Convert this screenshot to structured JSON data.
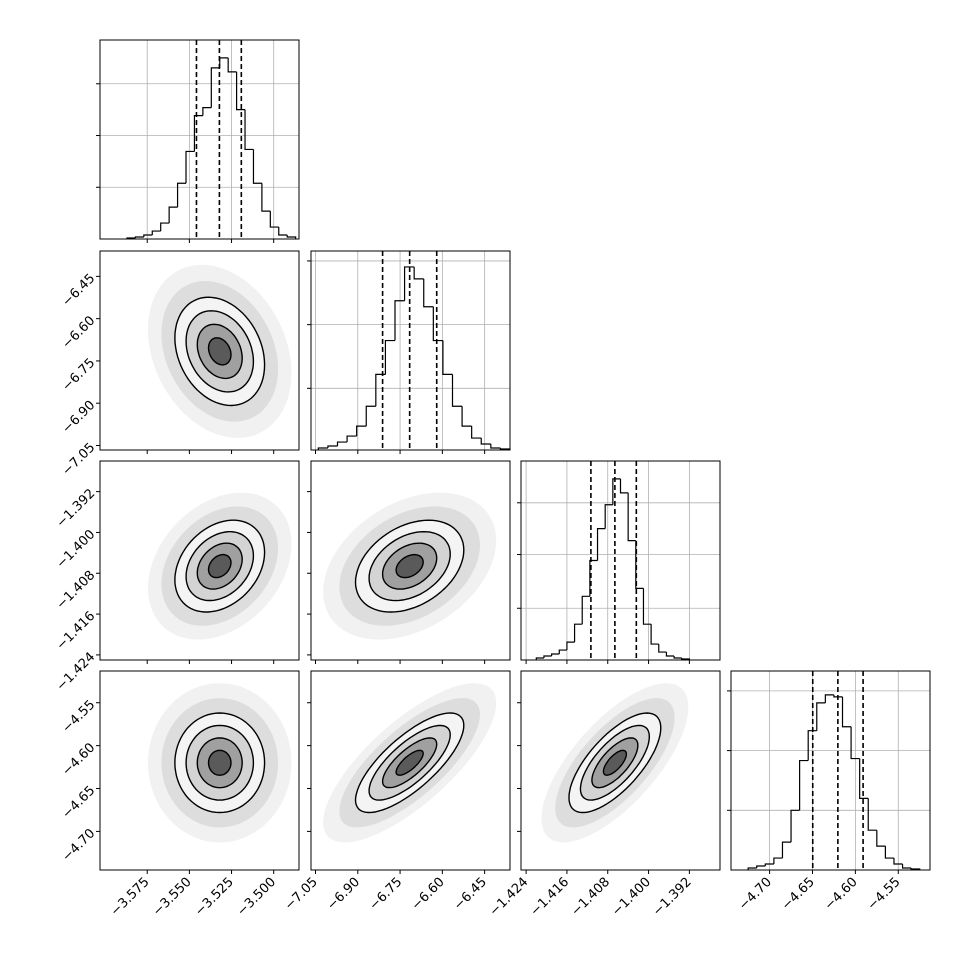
{
  "chart_data": {
    "type": "corner",
    "levels": [
      0.5,
      1,
      1.5,
      2
    ],
    "parameters": [
      {
        "lim": [
          -3.603,
          -3.485
        ],
        "ticks": [
          {
            "value": -3.575,
            "label": "−3.575"
          },
          {
            "value": -3.55,
            "label": "−3.550"
          },
          {
            "value": -3.525,
            "label": "−3.525"
          },
          {
            "value": -3.5,
            "label": "−3.500"
          }
        ],
        "bins": [
          -3.587,
          -3.582,
          -3.577,
          -3.572,
          -3.567,
          -3.562,
          -3.557,
          -3.552,
          -3.547,
          -3.542,
          -3.537,
          -3.532,
          -3.527,
          -3.522,
          -3.517,
          -3.512,
          -3.507,
          -3.502,
          -3.497,
          -3.492,
          -3.487
        ],
        "counts": [
          0.5,
          1,
          2,
          4,
          8,
          16,
          28,
          44,
          62,
          66,
          86,
          91,
          84,
          65,
          45,
          28,
          14,
          6,
          2,
          1
        ],
        "hist_ylim": [
          0,
          100
        ],
        "hist_yticks": [
          26,
          52,
          78
        ],
        "quantiles": [
          -3.5458,
          -3.5322,
          -3.5192
        ],
        "center": -3.532,
        "sigma": 0.0133
      },
      {
        "lim": [
          -7.066,
          -6.36
        ],
        "ticks": [
          {
            "value": -7.05,
            "label": "−7.05"
          },
          {
            "value": -6.9,
            "label": "−6.90"
          },
          {
            "value": -6.75,
            "label": "−6.75"
          },
          {
            "value": -6.6,
            "label": "−6.60"
          },
          {
            "value": -6.45,
            "label": "−6.45"
          }
        ],
        "bins": [
          -7.04,
          -7.006,
          -6.972,
          -6.938,
          -6.904,
          -6.87,
          -6.836,
          -6.802,
          -6.768,
          -6.734,
          -6.7,
          -6.666,
          -6.632,
          -6.598,
          -6.564,
          -6.53,
          -6.496,
          -6.462,
          -6.428,
          -6.394,
          -6.36
        ],
        "counts": [
          1,
          2,
          4,
          7,
          12,
          22,
          38,
          55,
          75,
          92,
          86,
          72,
          55,
          38,
          22,
          12,
          6,
          3,
          1,
          0.5
        ],
        "hist_ylim": [
          0,
          100
        ],
        "hist_yticks": [
          31,
          63,
          95
        ],
        "quantiles": [
          -6.812,
          -6.716,
          -6.62
        ],
        "center": -6.716,
        "sigma": 0.096
      },
      {
        "lim": [
          -1.425,
          -1.386
        ],
        "ticks": [
          {
            "value": -1.424,
            "label": "−1.424"
          },
          {
            "value": -1.416,
            "label": "−1.416"
          },
          {
            "value": -1.408,
            "label": "−1.408"
          },
          {
            "value": -1.4,
            "label": "−1.400"
          },
          {
            "value": -1.392,
            "label": "−1.392"
          }
        ],
        "bins": [
          -1.422,
          -1.4205,
          -1.419,
          -1.4175,
          -1.416,
          -1.4145,
          -1.413,
          -1.4115,
          -1.41,
          -1.4085,
          -1.407,
          -1.4055,
          -1.404,
          -1.4025,
          -1.401,
          -1.3995,
          -1.398,
          -1.3965,
          -1.395,
          -1.3935,
          -1.392
        ],
        "counts": [
          1,
          2,
          3,
          5,
          9,
          18,
          32,
          50,
          66,
          78,
          91,
          84,
          60,
          36,
          18,
          8,
          4,
          2,
          1,
          0.5
        ],
        "hist_ylim": [
          0,
          100
        ],
        "hist_yticks": [
          26,
          53,
          79
        ],
        "quantiles": [
          -1.4113,
          -1.4066,
          -1.4024
        ],
        "center": -1.4066,
        "sigma": 0.0045
      },
      {
        "lim": [
          -4.745,
          -4.513
        ],
        "ticks": [
          {
            "value": -4.7,
            "label": "−4.70"
          },
          {
            "value": -4.65,
            "label": "−4.65"
          },
          {
            "value": -4.6,
            "label": "−4.60"
          },
          {
            "value": -4.55,
            "label": "−4.55"
          }
        ],
        "bins": [
          -4.725,
          -4.715,
          -4.705,
          -4.695,
          -4.685,
          -4.675,
          -4.665,
          -4.655,
          -4.645,
          -4.635,
          -4.625,
          -4.615,
          -4.605,
          -4.595,
          -4.585,
          -4.575,
          -4.565,
          -4.555,
          -4.545,
          -4.535,
          -4.525
        ],
        "counts": [
          1,
          2,
          3,
          6,
          14,
          30,
          55,
          70,
          84,
          88,
          87,
          72,
          56,
          36,
          20,
          12,
          6,
          3,
          1,
          0.5
        ],
        "hist_ylim": [
          0,
          100
        ],
        "hist_yticks": [
          30,
          60,
          90
        ],
        "quantiles": [
          -4.6497,
          -4.6204,
          -4.591
        ],
        "center": -4.62,
        "sigma": 0.029
      }
    ],
    "correlations": [
      -0.25,
      0.3,
      0.35,
      0,
      0.75,
      0.7
    ]
  }
}
